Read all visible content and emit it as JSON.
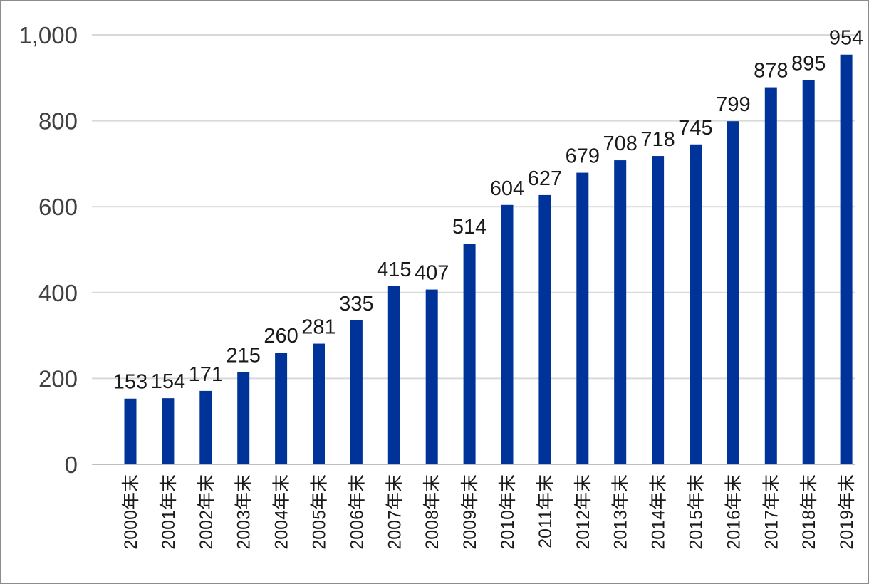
{
  "chart_data": {
    "type": "bar",
    "categories": [
      "2000年末",
      "2001年末",
      "2002年末",
      "2003年末",
      "2004年末",
      "2005年末",
      "2006年末",
      "2007年末",
      "2008年末",
      "2009年末",
      "2010年末",
      "2011年末",
      "2012年末",
      "2013年末",
      "2014年末",
      "2015年末",
      "2016年末",
      "2017年末",
      "2018年末",
      "2019年末"
    ],
    "values": [
      153,
      154,
      171,
      215,
      260,
      281,
      335,
      415,
      407,
      514,
      604,
      627,
      679,
      708,
      718,
      745,
      799,
      878,
      895,
      954
    ],
    "data_labels": [
      "153",
      "154",
      "171",
      "215",
      "260",
      "281",
      "335",
      "415",
      "407",
      "514",
      "604",
      "627",
      "679",
      "708",
      "718",
      "745",
      "799",
      "878",
      "895",
      "954"
    ],
    "y_ticks": [
      0,
      200,
      400,
      600,
      800,
      1000
    ],
    "y_tick_labels": [
      "0",
      "200",
      "400",
      "600",
      "800",
      "1,000"
    ],
    "ylim": [
      0,
      1000
    ],
    "grid": true,
    "legend": "none",
    "colors": {
      "bar": "#003399",
      "grid": "#d9d9d9",
      "axis": "#bfbfbf"
    }
  }
}
